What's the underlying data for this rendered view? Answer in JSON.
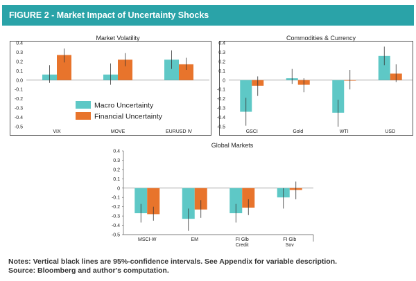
{
  "header": {
    "title": "FIGURE 2 - Market Impact of Uncertainty Shocks"
  },
  "colors": {
    "header_bg": "#2aa3a8",
    "macro": "#5ec8c6",
    "financial": "#e8742c"
  },
  "legend": {
    "placement": "inside-bottom-left of Market Volatility panel",
    "items": [
      {
        "name": "Macro Uncertainty",
        "color": "#5ec8c6"
      },
      {
        "name": "Financial Uncertainty",
        "color": "#e8742c"
      }
    ]
  },
  "chart_data": [
    {
      "type": "bar",
      "title": "Market Volatility",
      "categories": [
        "VIX",
        "MOVE",
        "EURUSD IV"
      ],
      "ylim": [
        -0.5,
        0.4
      ],
      "yticks": [
        "0.4",
        "0.3",
        "0.2",
        "0.1",
        "0.0",
        "-0.1",
        "-0.2",
        "-0.3",
        "-0.4",
        "-0.5"
      ],
      "series": [
        {
          "name": "Macro Uncertainty",
          "values": [
            0.06,
            0.06,
            0.22
          ],
          "ci_low": [
            -0.03,
            -0.05,
            0.12
          ],
          "ci_high": [
            0.16,
            0.18,
            0.32
          ]
        },
        {
          "name": "Financial Uncertainty",
          "values": [
            0.27,
            0.22,
            0.17
          ],
          "ci_low": [
            0.19,
            0.15,
            0.11
          ],
          "ci_high": [
            0.34,
            0.29,
            0.24
          ]
        }
      ]
    },
    {
      "type": "bar",
      "title": "Commodities & Currency",
      "categories": [
        "GSCI",
        "Gold",
        "WTI",
        "USD"
      ],
      "ylim": [
        -0.5,
        0.4
      ],
      "yticks": [
        "0.4",
        "0.3",
        "0.2",
        "0.1",
        "0",
        "-0.1",
        "-0.2",
        "-0.3",
        "-0.4",
        "-0.5"
      ],
      "series": [
        {
          "name": "Macro Uncertainty",
          "values": [
            -0.34,
            0.02,
            -0.35,
            0.26
          ],
          "ci_low": [
            -0.49,
            -0.04,
            -0.5,
            0.16
          ],
          "ci_high": [
            -0.19,
            0.12,
            -0.21,
            0.36
          ]
        },
        {
          "name": "Financial Uncertainty",
          "values": [
            -0.06,
            -0.05,
            0.0,
            0.07
          ],
          "ci_low": [
            -0.17,
            -0.13,
            -0.1,
            -0.02
          ],
          "ci_high": [
            0.04,
            0.02,
            0.11,
            0.17
          ]
        }
      ]
    },
    {
      "type": "bar",
      "title": "Global Markets",
      "categories": [
        "MSCI-W",
        "EM",
        "FI Glb Credit",
        "FI Glb Sov"
      ],
      "category_lines": [
        [
          "MSCI-W"
        ],
        [
          "EM"
        ],
        [
          "FI Glb",
          "Credit"
        ],
        [
          "FI Glb",
          "Sov"
        ]
      ],
      "ylim": [
        -0.5,
        0.4
      ],
      "yticks": [
        "0.4",
        "0.3",
        "0.2",
        "0.1",
        "0",
        "-0.1",
        "-0.2",
        "-0.3",
        "-0.4",
        "-0.5"
      ],
      "series": [
        {
          "name": "Macro Uncertainty",
          "values": [
            -0.27,
            -0.33,
            -0.27,
            -0.1
          ],
          "ci_low": [
            -0.37,
            -0.46,
            -0.37,
            -0.22
          ],
          "ci_high": [
            -0.17,
            -0.22,
            -0.17,
            0.0
          ]
        },
        {
          "name": "Financial Uncertainty",
          "values": [
            -0.28,
            -0.23,
            -0.21,
            -0.02
          ],
          "ci_low": [
            -0.35,
            -0.32,
            -0.29,
            -0.12
          ],
          "ci_high": [
            -0.2,
            -0.13,
            -0.12,
            0.07
          ]
        }
      ]
    }
  ],
  "notes": {
    "line1": "Notes: Vertical black lines are 95%-confidence intervals. See Appendix for variable description.",
    "line2": "Source: Bloomberg and author's computation."
  }
}
